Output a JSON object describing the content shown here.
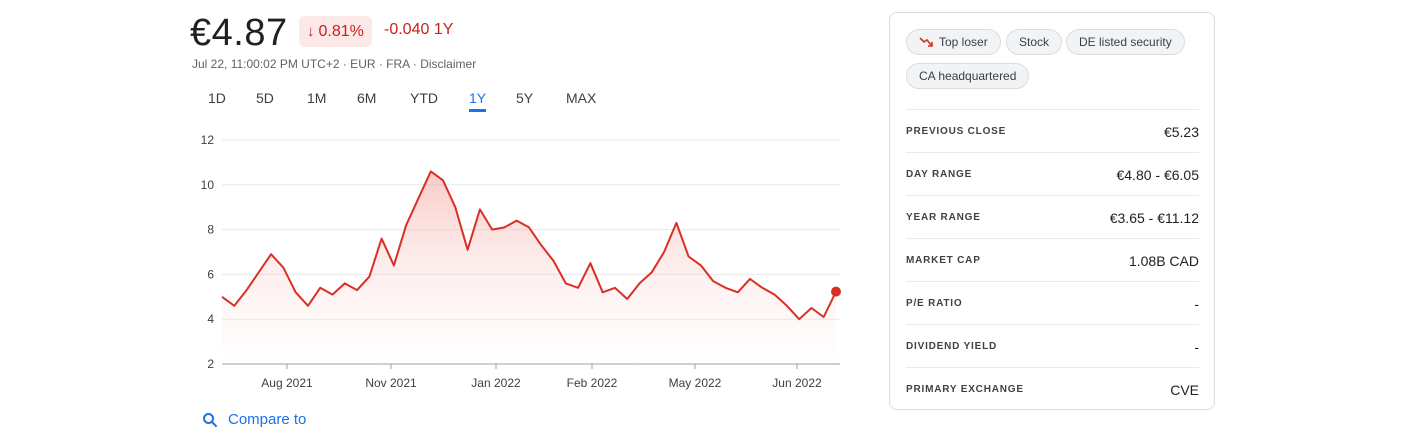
{
  "quote": {
    "price": "€4.87",
    "change_pct": "0.81%",
    "change_abs": "-0.040 1Y",
    "meta": "Jul 22, 11:00:02 PM UTC+2 · EUR · FRA · Disclaimer"
  },
  "range_tabs": [
    {
      "label": "1D",
      "active": false
    },
    {
      "label": "5D",
      "active": false
    },
    {
      "label": "1M",
      "active": false
    },
    {
      "label": "6M",
      "active": false
    },
    {
      "label": "YTD",
      "active": false
    },
    {
      "label": "1Y",
      "active": true
    },
    {
      "label": "5Y",
      "active": false
    },
    {
      "label": "MAX",
      "active": false
    }
  ],
  "compare_label": "Compare to",
  "tags": [
    "Top loser",
    "Stock",
    "DE listed security",
    "CA headquartered"
  ],
  "stats": [
    {
      "label": "PREVIOUS CLOSE",
      "value": "€5.23"
    },
    {
      "label": "DAY RANGE",
      "value": "€4.80 - €6.05"
    },
    {
      "label": "YEAR RANGE",
      "value": "€3.65 - €11.12"
    },
    {
      "label": "MARKET CAP",
      "value": "1.08B CAD"
    },
    {
      "label": "P/E RATIO",
      "value": "-"
    },
    {
      "label": "DIVIDEND YIELD",
      "value": "-"
    },
    {
      "label": "PRIMARY EXCHANGE",
      "value": "CVE"
    }
  ],
  "colors": {
    "line": "#d93025",
    "accent": "#1a73e8",
    "negative": "#c5221f"
  },
  "chart_data": {
    "type": "area",
    "ylim": [
      2,
      12
    ],
    "y_ticks": [
      "12",
      "10",
      "8",
      "6",
      "4",
      "2"
    ],
    "x_ticks": [
      "Aug 2021",
      "Nov 2021",
      "Jan 2022",
      "Feb 2022",
      "May 2022",
      "Jun 2022"
    ],
    "x": [
      0,
      2,
      4,
      6,
      8,
      10,
      12,
      14,
      16,
      18,
      20,
      22,
      24,
      26,
      28,
      30,
      32,
      34,
      36,
      38,
      40,
      42,
      44,
      46,
      48,
      50,
      52,
      54,
      56,
      58,
      60,
      62,
      64,
      66,
      68,
      70,
      72,
      74,
      76,
      78,
      80,
      82,
      84,
      86,
      88,
      90,
      92,
      94,
      96,
      98,
      100
    ],
    "values": [
      5.0,
      4.6,
      5.3,
      6.1,
      6.9,
      6.3,
      5.2,
      4.6,
      5.4,
      5.1,
      5.6,
      5.3,
      5.9,
      7.6,
      6.4,
      8.2,
      9.4,
      10.6,
      10.2,
      9.0,
      7.1,
      8.9,
      8.0,
      8.1,
      8.4,
      8.1,
      7.3,
      6.6,
      5.6,
      5.4,
      6.5,
      5.2,
      5.4,
      4.9,
      5.6,
      6.1,
      7.0,
      8.3,
      6.8,
      6.4,
      5.7,
      5.4,
      5.2,
      5.8,
      5.4,
      5.1,
      4.6,
      4.0,
      4.5,
      4.1,
      5.23
    ]
  }
}
